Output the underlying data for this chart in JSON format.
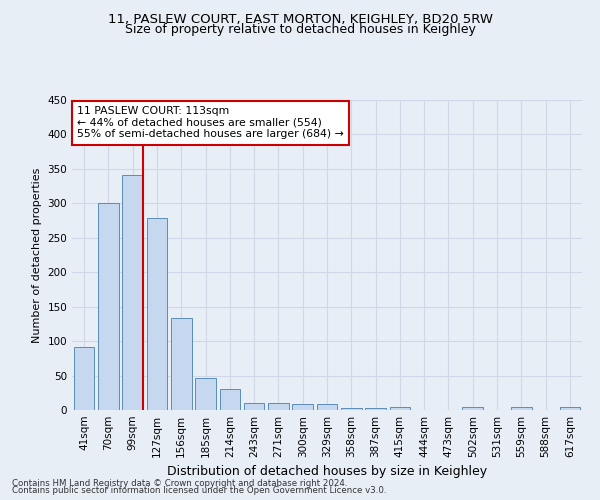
{
  "title": "11, PASLEW COURT, EAST MORTON, KEIGHLEY, BD20 5RW",
  "subtitle": "Size of property relative to detached houses in Keighley",
  "xlabel": "Distribution of detached houses by size in Keighley",
  "ylabel": "Number of detached properties",
  "bins": [
    "41sqm",
    "70sqm",
    "99sqm",
    "127sqm",
    "156sqm",
    "185sqm",
    "214sqm",
    "243sqm",
    "271sqm",
    "300sqm",
    "329sqm",
    "358sqm",
    "387sqm",
    "415sqm",
    "444sqm",
    "473sqm",
    "502sqm",
    "531sqm",
    "559sqm",
    "588sqm",
    "617sqm"
  ],
  "values": [
    92,
    301,
    341,
    279,
    133,
    47,
    30,
    10,
    10,
    8,
    8,
    3,
    3,
    4,
    0,
    0,
    4,
    0,
    4,
    0,
    4
  ],
  "bar_color": "#c5d8ef",
  "bar_edge_color": "#5b8db8",
  "red_line_bin_index": 2,
  "annotation_line1": "11 PASLEW COURT: 113sqm",
  "annotation_line2": "← 44% of detached houses are smaller (554)",
  "annotation_line3": "55% of semi-detached houses are larger (684) →",
  "annotation_box_color": "white",
  "annotation_box_edge": "#cc0000",
  "ylim": [
    0,
    450
  ],
  "yticks": [
    0,
    50,
    100,
    150,
    200,
    250,
    300,
    350,
    400,
    450
  ],
  "footer_line1": "Contains HM Land Registry data © Crown copyright and database right 2024.",
  "footer_line2": "Contains public sector information licensed under the Open Government Licence v3.0.",
  "background_color": "#e8eef6",
  "plot_bg_color": "#e8eef6",
  "grid_color": "#d0d8e8",
  "title_fontsize": 9.5,
  "subtitle_fontsize": 9,
  "tick_fontsize": 7.5,
  "ylabel_fontsize": 8,
  "xlabel_fontsize": 9
}
